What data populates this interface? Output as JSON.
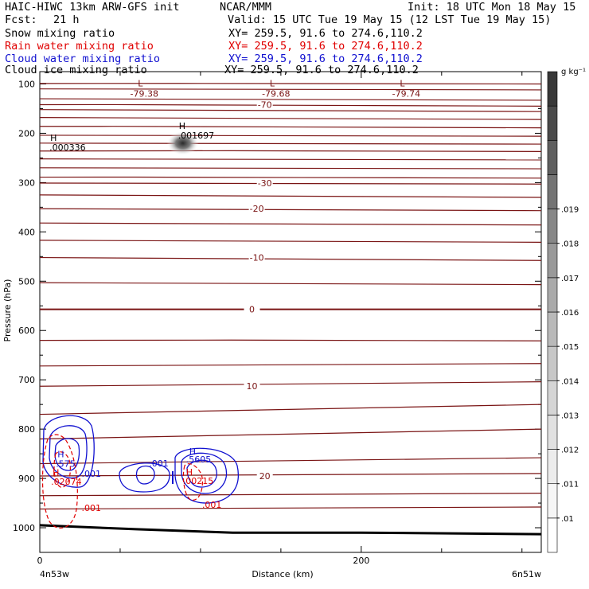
{
  "header": {
    "model": "HAIC-HIWC 13km ARW-GFS init",
    "org": "NCAR/MMM",
    "init": "Init: 18 UTC Mon 18 May 15",
    "fcst_label": "Fcst:",
    "fcst_value": "21 h",
    "valid": "Valid: 15 UTC Tue 19 May 15 (12 LST Tue 19 May 15)",
    "fields": [
      {
        "name": "Snow mixing ratio",
        "xy": "XY= 259.5, 91.6 to 274.6,110.2",
        "color": "#000000"
      },
      {
        "name": "Rain water mixing ratio",
        "xy": "XY= 259.5, 91.6 to 274.6,110.2",
        "color": "#e00000"
      },
      {
        "name": "Cloud water mixing ratio",
        "xy": "XY= 259.5, 91.6 to 274.6,110.2",
        "color": "#1010d0"
      },
      {
        "name": "Cloud ice mixing ratio",
        "xy": "XY= 259.5, 91.6 to 274.6,110.2",
        "color": "#000000"
      }
    ]
  },
  "chart_data": {
    "type": "heatmap",
    "xlabel": "Distance (km)",
    "ylabel": "Pressure (hPa)",
    "xlim": [
      0,
      312
    ],
    "ylim": [
      1050,
      75
    ],
    "x_ticks": [
      0,
      200
    ],
    "x_minor_ticks": [
      50,
      100,
      150,
      250,
      300
    ],
    "y_ticks": [
      100,
      200,
      300,
      400,
      500,
      600,
      700,
      800,
      900,
      1000
    ],
    "x_endpoint_labels": {
      "left": "4n53w",
      "right": "6n51w"
    },
    "colorbar": {
      "unit": "g kg⁻¹",
      "labels": [
        ".01",
        ".011",
        ".012",
        ".013",
        ".014",
        ".015",
        ".016",
        ".017",
        ".018",
        ".019"
      ],
      "colors": [
        "#ffffff",
        "#f6f6f6",
        "#ececec",
        "#e1e1e1",
        "#d5d5d5",
        "#c7c7c7",
        "#b9b9b9",
        "#aaaaaa",
        "#999999",
        "#878787",
        "#747474",
        "#5f5f5f",
        "#4a4a4a",
        "#383838"
      ]
    },
    "temperature_isotherms": {
      "color": "#7a1414",
      "values": [
        -79.38,
        -70,
        -60,
        -50,
        -45,
        -40,
        -35,
        -30,
        -25,
        -20,
        -15,
        -10,
        -5,
        0,
        5,
        10,
        15,
        20,
        25
      ],
      "labels": [
        {
          "text": "-70",
          "x": 140,
          "p": 142
        },
        {
          "text": "-30",
          "x": 140,
          "p": 301
        },
        {
          "text": "-20",
          "x": 135,
          "p": 353
        },
        {
          "text": "-10",
          "x": 135,
          "p": 452
        },
        {
          "text": "0",
          "x": 132,
          "p": 557
        },
        {
          "text": "10",
          "x": 132,
          "p": 713
        },
        {
          "text": "20",
          "x": 140,
          "p": 895
        }
      ],
      "lows": [
        {
          "mark": "L",
          "value": "-79.38",
          "x": 65,
          "p": 118
        },
        {
          "mark": "L",
          "value": "-79.68",
          "x": 147,
          "p": 118
        },
        {
          "mark": "L",
          "value": "-79.74",
          "x": 228,
          "p": 118
        }
      ]
    },
    "snow_highs": [
      {
        "mark": "H",
        "value": ".000336",
        "x": 8,
        "p": 228
      },
      {
        "mark": "H",
        "value": ".001697",
        "x": 88,
        "p": 204
      }
    ],
    "surface_pressure": [
      {
        "x": 0,
        "p": 995
      },
      {
        "x": 60,
        "p": 1003
      },
      {
        "x": 120,
        "p": 1010
      },
      {
        "x": 200,
        "p": 1010
      },
      {
        "x": 312,
        "p": 1013
      }
    ],
    "cloud_water": {
      "color": "#1010d0",
      "labels": [
        {
          "text": ".575",
          "x": 10,
          "p": 870
        },
        {
          "text": ".001",
          "x": 26,
          "p": 890
        },
        {
          "text": ".001",
          "x": 68,
          "p": 869
        },
        {
          "text": ".5605",
          "x": 91,
          "p": 861
        },
        {
          "text": "H",
          "x": 11,
          "p": 851
        },
        {
          "text": "H",
          "x": 93,
          "p": 845
        }
      ]
    },
    "rain_water": {
      "color": "#e00000",
      "labels": [
        {
          "text": ".02074",
          "x": 7,
          "p": 906
        },
        {
          "text": ".001",
          "x": 26,
          "p": 960
        },
        {
          "text": ".00215",
          "x": 89,
          "p": 905
        },
        {
          "text": ".001",
          "x": 101,
          "p": 953
        },
        {
          "text": "H",
          "x": 8,
          "p": 888
        },
        {
          "text": "H",
          "x": 91,
          "p": 887
        }
      ]
    }
  }
}
